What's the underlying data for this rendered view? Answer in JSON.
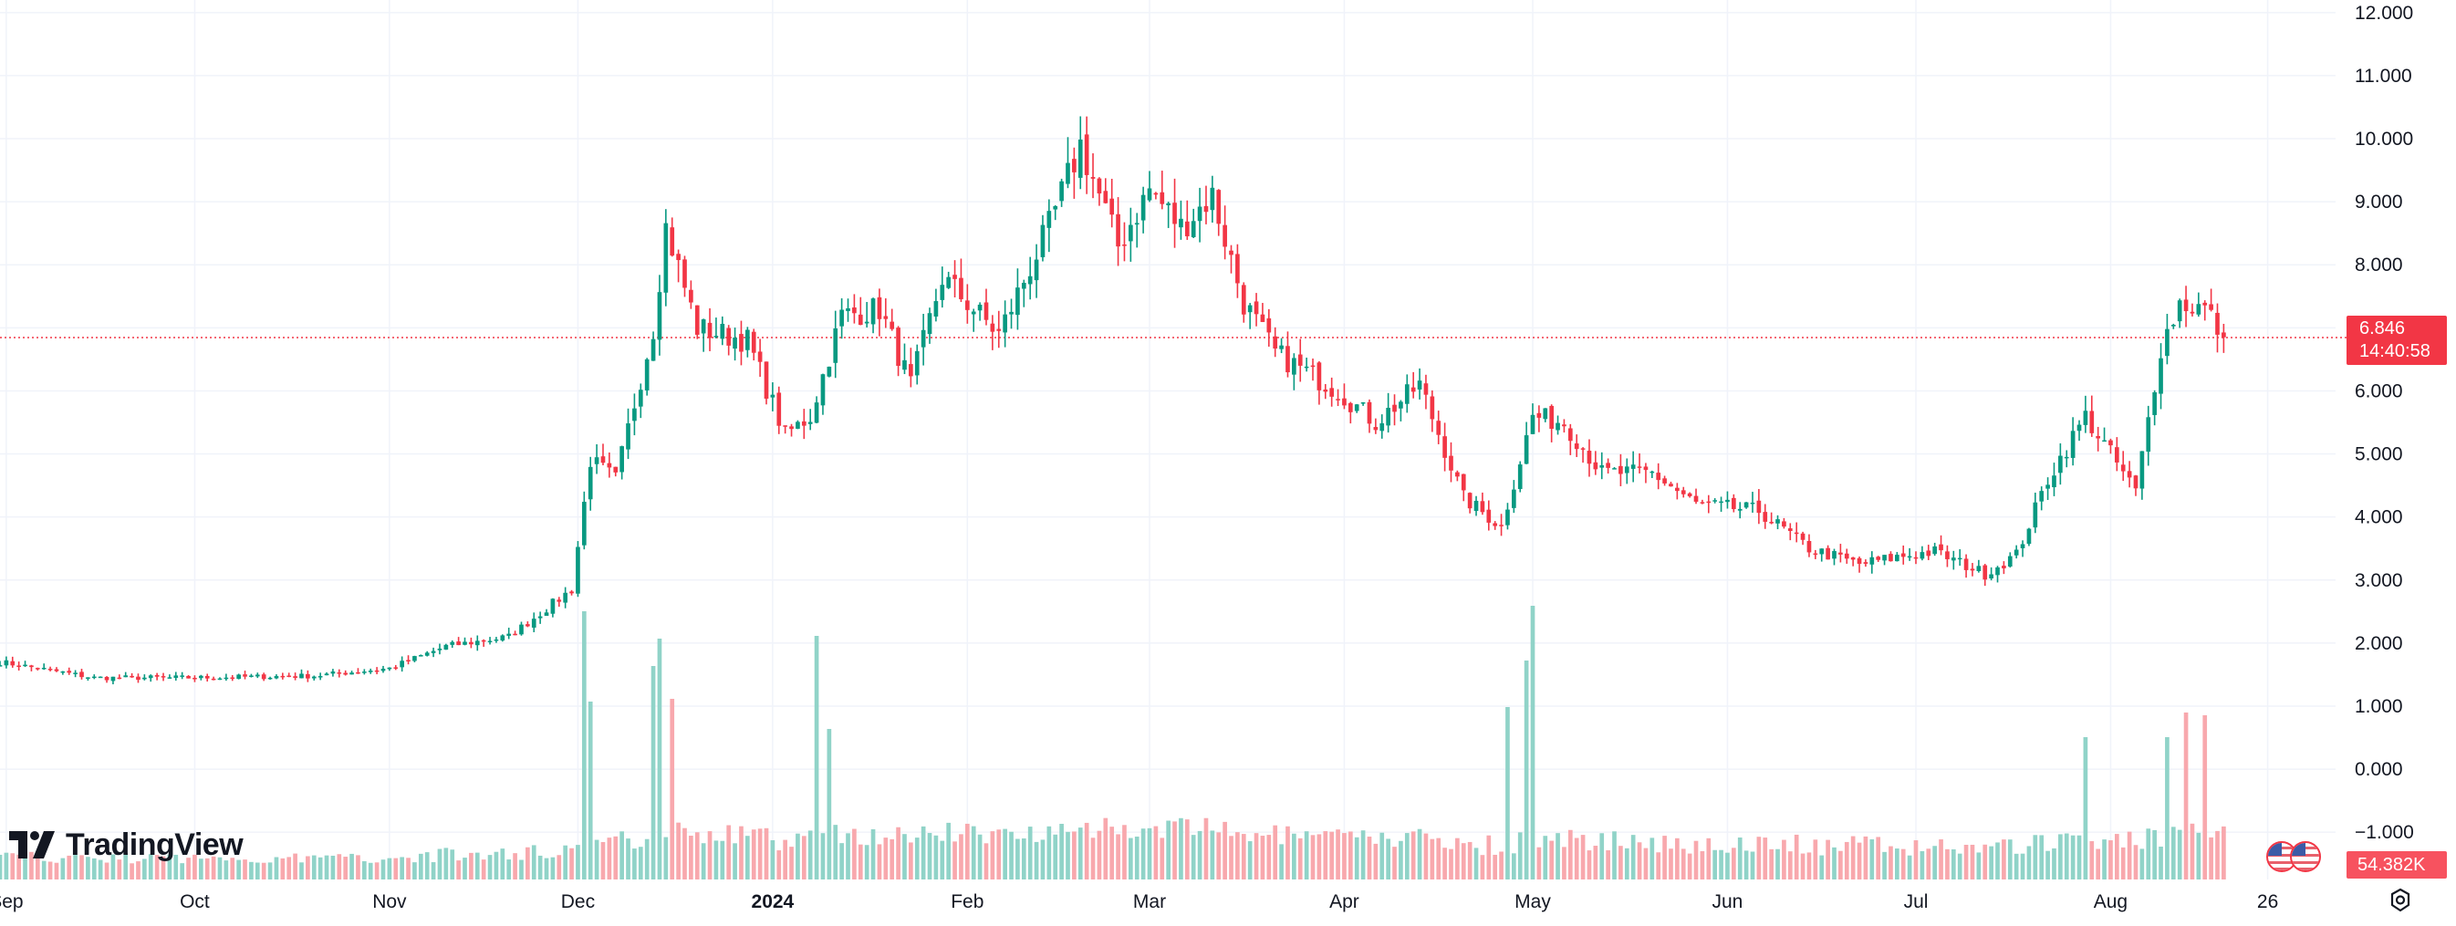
{
  "chart_data": {
    "type": "candlestick",
    "price_axis": {
      "ticks": [
        "12.000",
        "11.000",
        "10.000",
        "9.000",
        "8.000",
        "7.000",
        "6.000",
        "5.000",
        "4.000",
        "3.000",
        "2.000",
        "1.000",
        "0.000",
        "−1.000"
      ],
      "ylim": [
        -1.75,
        12.2
      ]
    },
    "time_axis": {
      "tick_labels": [
        {
          "label": "Sep",
          "date": "2023-09-01",
          "bold": false
        },
        {
          "label": "Oct",
          "date": "2023-10-01",
          "bold": false
        },
        {
          "label": "Nov",
          "date": "2023-11-01",
          "bold": false
        },
        {
          "label": "Dec",
          "date": "2023-12-01",
          "bold": false
        },
        {
          "label": "2024",
          "date": "2024-01-01",
          "bold": true
        },
        {
          "label": "Feb",
          "date": "2024-02-01",
          "bold": false
        },
        {
          "label": "Mar",
          "date": "2024-03-01",
          "bold": false
        },
        {
          "label": "Apr",
          "date": "2024-04-01",
          "bold": false
        },
        {
          "label": "May",
          "date": "2024-05-01",
          "bold": false
        },
        {
          "label": "Jun",
          "date": "2024-06-01",
          "bold": false
        },
        {
          "label": "Jul",
          "date": "2024-07-01",
          "bold": false
        },
        {
          "label": "Aug",
          "date": "2024-08-01",
          "bold": false
        },
        {
          "label": "26",
          "date": "2024-08-26",
          "bold": false
        }
      ],
      "range": [
        "2023-08-31",
        "2024-08-31"
      ]
    },
    "anchors": [
      [
        "2023-08-31",
        1.7
      ],
      [
        "2023-09-15",
        1.45
      ],
      [
        "2023-10-01",
        1.45
      ],
      [
        "2023-10-20",
        1.48
      ],
      [
        "2023-11-01",
        1.6
      ],
      [
        "2023-11-10",
        1.95
      ],
      [
        "2023-11-20",
        2.1
      ],
      [
        "2023-11-30",
        2.85
      ],
      [
        "2023-12-03",
        4.9
      ],
      [
        "2023-12-07",
        4.6
      ],
      [
        "2023-12-13",
        7.0
      ],
      [
        "2023-12-15",
        8.6
      ],
      [
        "2023-12-20",
        7.0
      ],
      [
        "2023-12-28",
        6.8
      ],
      [
        "2024-01-03",
        5.3
      ],
      [
        "2024-01-07",
        5.6
      ],
      [
        "2024-01-12",
        7.2
      ],
      [
        "2024-01-18",
        7.3
      ],
      [
        "2024-01-23",
        6.1
      ],
      [
        "2024-01-28",
        7.8
      ],
      [
        "2024-02-06",
        6.9
      ],
      [
        "2024-02-14",
        8.6
      ],
      [
        "2024-02-19",
        9.9
      ],
      [
        "2024-02-25",
        8.3
      ],
      [
        "2024-03-01",
        9.2
      ],
      [
        "2024-03-06",
        8.6
      ],
      [
        "2024-03-11",
        9.1
      ],
      [
        "2024-03-16",
        7.4
      ],
      [
        "2024-03-21",
        6.6
      ],
      [
        "2024-03-31",
        6.0
      ],
      [
        "2024-04-06",
        5.5
      ],
      [
        "2024-04-13",
        6.1
      ],
      [
        "2024-04-20",
        4.3
      ],
      [
        "2024-04-26",
        3.85
      ],
      [
        "2024-05-01",
        5.6
      ],
      [
        "2024-05-06",
        5.5
      ],
      [
        "2024-05-12",
        4.7
      ],
      [
        "2024-05-20",
        4.7
      ],
      [
        "2024-05-27",
        4.2
      ],
      [
        "2024-06-06",
        4.1
      ],
      [
        "2024-06-14",
        3.5
      ],
      [
        "2024-06-22",
        3.25
      ],
      [
        "2024-06-30",
        3.4
      ],
      [
        "2024-07-04",
        3.45
      ],
      [
        "2024-07-12",
        3.1
      ],
      [
        "2024-07-17",
        3.4
      ],
      [
        "2024-07-22",
        4.6
      ],
      [
        "2024-07-28",
        5.6
      ],
      [
        "2024-08-05",
        4.4
      ],
      [
        "2024-08-09",
        6.7
      ],
      [
        "2024-08-12",
        7.4
      ],
      [
        "2024-08-16",
        7.3
      ],
      [
        "2024-08-19",
        6.85
      ]
    ],
    "volume": {
      "spikes": [
        [
          "2023-12-02",
          0.98
        ],
        [
          "2023-12-03",
          0.65
        ],
        [
          "2023-12-13",
          0.78
        ],
        [
          "2023-12-14",
          0.88
        ],
        [
          "2023-12-16",
          0.66
        ],
        [
          "2024-01-08",
          0.89
        ],
        [
          "2024-01-10",
          0.55
        ],
        [
          "2024-05-01",
          1.0
        ],
        [
          "2024-04-30",
          0.8
        ],
        [
          "2024-04-27",
          0.63
        ],
        [
          "2024-07-28",
          0.52
        ],
        [
          "2024-08-13",
          0.61
        ],
        [
          "2024-08-16",
          0.6
        ],
        [
          "2024-08-10",
          0.52
        ]
      ]
    },
    "last_price": {
      "value": 6.846,
      "label": "6.846",
      "countdown": "14:40:58"
    },
    "last_volume": "54.382K",
    "colors": {
      "up": "#089981",
      "down": "#f23645",
      "vol_up": "#90d3c8",
      "vol_down": "#f8a8ad",
      "grid": "#f0f3fa",
      "text": "#131722"
    }
  },
  "branding": {
    "logo_text": "TradingView"
  },
  "badges": {
    "price": "6.846",
    "countdown": "14:40:58",
    "volume": "54.382K"
  },
  "icons": {
    "logo": "tradingview-logo-icon",
    "flags": "us-flag-icon",
    "settings": "settings-icon"
  }
}
